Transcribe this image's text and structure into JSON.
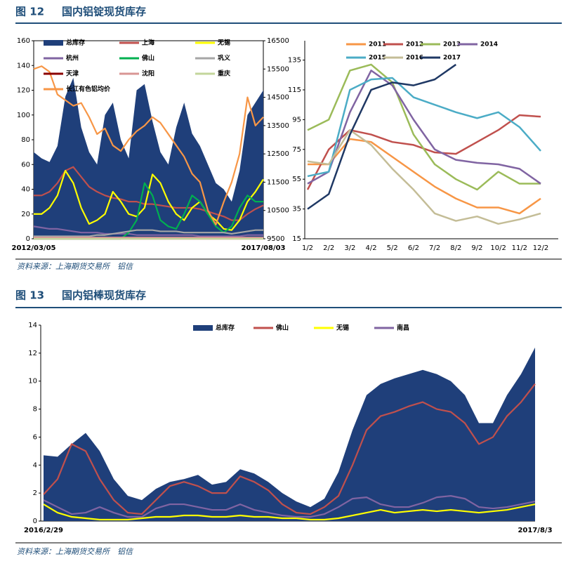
{
  "figures": [
    {
      "label": "图 12",
      "title": "国内铝锭现货库存",
      "source": "资料来源：上海期货交易所　铝信"
    },
    {
      "label": "图 13",
      "title": "国内铝棒现货库存",
      "source": "资料来源：上海期货交易所　铝信"
    }
  ],
  "chart_data": [
    {
      "type": "line",
      "legend": "upper left",
      "frame": true,
      "categories": [
        "2012/03/05",
        null,
        null,
        null,
        null,
        null,
        null,
        null,
        null,
        null,
        null,
        null,
        null,
        null,
        null,
        null,
        null,
        null,
        null,
        null,
        null,
        null,
        null,
        null,
        null,
        null,
        null,
        null,
        null,
        "2017/08/03"
      ],
      "ylim": [
        0,
        160
      ],
      "yticks": [
        0,
        20,
        40,
        60,
        80,
        100,
        120,
        140,
        160
      ],
      "y2lim": [
        9500,
        16500
      ],
      "y2ticks": [
        9500,
        10500,
        11500,
        12500,
        13500,
        14500,
        15500,
        16500
      ],
      "series": [
        {
          "name": "总库存",
          "type": "area",
          "color": "#1f3f7a",
          "values": [
            70,
            65,
            62,
            75,
            115,
            130,
            90,
            70,
            60,
            100,
            110,
            80,
            65,
            120,
            125,
            95,
            70,
            60,
            90,
            110,
            85,
            75,
            60,
            45,
            40,
            30,
            55,
            100,
            110,
            120
          ]
        },
        {
          "name": "上海",
          "color": "#c0504d",
          "values": [
            35,
            35,
            38,
            45,
            55,
            58,
            50,
            42,
            38,
            35,
            33,
            32,
            30,
            30,
            28,
            28,
            27,
            26,
            25,
            25,
            25,
            24,
            22,
            20,
            18,
            15,
            15,
            20,
            24,
            27
          ]
        },
        {
          "name": "无锡",
          "color": "#ffff00",
          "values": [
            20,
            20,
            25,
            35,
            55,
            45,
            25,
            12,
            15,
            20,
            38,
            30,
            20,
            18,
            25,
            52,
            45,
            30,
            20,
            15,
            25,
            30,
            20,
            15,
            8,
            7,
            15,
            30,
            38,
            48
          ]
        },
        {
          "name": "杭州",
          "color": "#8064a2",
          "values": [
            10,
            9,
            8,
            8,
            7,
            6,
            5,
            5,
            5,
            4,
            4,
            4,
            4,
            3,
            3,
            3,
            3,
            3,
            3,
            3,
            3,
            2,
            2,
            2,
            2,
            2,
            2,
            3,
            3,
            3
          ]
        },
        {
          "name": "佛山",
          "color": "#00b050",
          "values": [
            0,
            0,
            0,
            0,
            0,
            0,
            0,
            0,
            0,
            0,
            0,
            0,
            5,
            15,
            45,
            35,
            15,
            10,
            8,
            20,
            35,
            30,
            20,
            10,
            5,
            10,
            25,
            35,
            30,
            30
          ]
        },
        {
          "name": "巩义",
          "color": "#a6a6a6",
          "values": [
            2,
            2,
            2,
            2,
            2,
            2,
            2,
            2,
            3,
            3,
            4,
            5,
            6,
            7,
            7,
            7,
            6,
            6,
            6,
            5,
            5,
            5,
            5,
            5,
            5,
            4,
            5,
            6,
            7,
            7
          ]
        },
        {
          "name": "天津",
          "color": "#8b0000",
          "values": [
            0,
            0,
            0,
            0,
            0,
            0,
            0,
            0,
            0,
            0,
            0,
            0,
            0,
            0,
            0,
            0,
            0,
            0,
            0,
            0,
            0,
            0,
            0,
            0,
            0,
            0,
            0,
            0,
            0,
            0
          ]
        },
        {
          "name": "沈阳",
          "color": "#d99694",
          "values": [
            1,
            1,
            1,
            1,
            1,
            1,
            1,
            1,
            1,
            1,
            1,
            1,
            1,
            1,
            1,
            1,
            1,
            1,
            1,
            1,
            1,
            1,
            1,
            1,
            1,
            1,
            1,
            1,
            1,
            1
          ]
        },
        {
          "name": "重庆",
          "color": "#c3d69b",
          "values": [
            0,
            0,
            0,
            0,
            0,
            0,
            0,
            0,
            0,
            0,
            0,
            0,
            0,
            0,
            0,
            0,
            0,
            0,
            0,
            0,
            0,
            0,
            0,
            0,
            0,
            0,
            0,
            0,
            0,
            0
          ]
        },
        {
          "name": "长江有色铝均价",
          "color": "#f79646",
          "axis": "y2",
          "values": [
            15500,
            15600,
            15400,
            14600,
            14400,
            14200,
            14300,
            13800,
            13200,
            13400,
            12800,
            12600,
            13000,
            13300,
            13500,
            13800,
            13600,
            13200,
            12800,
            12400,
            11800,
            11500,
            10500,
            10000,
            10800,
            11500,
            12500,
            14500,
            13500,
            13800
          ]
        }
      ]
    },
    {
      "type": "line",
      "legend": "upper center",
      "frame": false,
      "categories": [
        "1/2",
        "2/2",
        "3/2",
        "4/2",
        "5/2",
        "6/2",
        "7/2",
        "8/2",
        "9/2",
        "10/2",
        "11/2",
        "12/2"
      ],
      "ylim": [
        15,
        148
      ],
      "yticks": [
        15,
        35,
        55,
        75,
        95,
        115,
        135
      ],
      "series": [
        {
          "name": "2011",
          "color": "#f79646",
          "values": [
            65,
            65,
            82,
            80,
            70,
            60,
            50,
            42,
            36,
            36,
            32,
            42
          ]
        },
        {
          "name": "2012",
          "color": "#c0504d",
          "values": [
            48,
            75,
            88,
            85,
            80,
            78,
            73,
            72,
            80,
            88,
            98,
            97
          ]
        },
        {
          "name": "2013",
          "color": "#9bbb59",
          "values": [
            88,
            95,
            128,
            132,
            120,
            85,
            65,
            55,
            48,
            60,
            52,
            52
          ]
        },
        {
          "name": "2014",
          "color": "#8064a2",
          "values": [
            52,
            60,
            100,
            128,
            118,
            95,
            75,
            68,
            66,
            65,
            62,
            52
          ]
        },
        {
          "name": "2015",
          "color": "#4bacc6",
          "values": [
            57,
            60,
            115,
            122,
            123,
            110,
            105,
            100,
            96,
            100,
            90,
            74
          ]
        },
        {
          "name": "2016",
          "color": "#c4bd97",
          "values": [
            67,
            65,
            88,
            78,
            62,
            48,
            32,
            27,
            30,
            25,
            28,
            32
          ]
        },
        {
          "name": "2017",
          "color": "#1f3864",
          "values": [
            35,
            45,
            85,
            115,
            120,
            118,
            122,
            132,
            null,
            null,
            null,
            null
          ]
        }
      ]
    },
    {
      "type": "line",
      "legend": "upper center",
      "frame": false,
      "categories": [
        "2016/2/29",
        null,
        null,
        null,
        null,
        null,
        null,
        null,
        null,
        null,
        null,
        null,
        null,
        null,
        null,
        null,
        null,
        null,
        null,
        null,
        null,
        null,
        null,
        null,
        null,
        null,
        null,
        null,
        null,
        null,
        null,
        null,
        null,
        null,
        null,
        "2017/8/3"
      ],
      "ylim": [
        0,
        14
      ],
      "yticks": [
        0,
        2,
        4,
        6,
        8,
        10,
        12,
        14
      ],
      "series": [
        {
          "name": "总库存",
          "type": "area",
          "color": "#1f3f7a",
          "values": [
            4.7,
            4.6,
            5.5,
            6.3,
            5,
            3,
            1.8,
            1.5,
            2.3,
            2.8,
            3,
            3.3,
            2.6,
            2.8,
            3.7,
            3.4,
            2.8,
            2,
            1.4,
            1.0,
            1.6,
            3.5,
            6.5,
            9,
            9.8,
            10.2,
            10.5,
            10.8,
            10.5,
            10,
            9,
            7,
            7,
            9,
            10.5,
            12.4
          ]
        },
        {
          "name": "佛山",
          "color": "#c0504d",
          "values": [
            1.9,
            3,
            5.5,
            5,
            3,
            1.5,
            0.6,
            0.5,
            1.5,
            2.5,
            2.8,
            2.5,
            2.0,
            2.0,
            3.2,
            2.8,
            2.2,
            1.2,
            0.6,
            0.5,
            1.0,
            1.8,
            4,
            6.5,
            7.5,
            7.8,
            8.2,
            8.5,
            8,
            7.8,
            7,
            5.5,
            6,
            7.5,
            8.5,
            9.8
          ]
        },
        {
          "name": "无锡",
          "color": "#ffff00",
          "values": [
            1.2,
            0.6,
            0.3,
            0.2,
            0.1,
            0.1,
            0.1,
            0.2,
            0.3,
            0.3,
            0.4,
            0.4,
            0.3,
            0.3,
            0.4,
            0.3,
            0.3,
            0.2,
            0.2,
            0.1,
            0.1,
            0.2,
            0.4,
            0.6,
            0.8,
            0.6,
            0.7,
            0.8,
            0.7,
            0.8,
            0.7,
            0.6,
            0.7,
            0.8,
            1.0,
            1.2
          ]
        },
        {
          "name": "南昌",
          "color": "#8064a2",
          "values": [
            1.5,
            1.0,
            0.5,
            0.6,
            1.0,
            0.6,
            0.3,
            0.3,
            0.9,
            1.2,
            1.2,
            1.0,
            0.8,
            0.8,
            1.2,
            0.8,
            0.6,
            0.4,
            0.3,
            0.3,
            0.5,
            1.0,
            1.6,
            1.7,
            1.2,
            1.0,
            1.0,
            1.3,
            1.7,
            1.8,
            1.6,
            1.0,
            0.9,
            1.0,
            1.2,
            1.4
          ]
        }
      ]
    }
  ]
}
